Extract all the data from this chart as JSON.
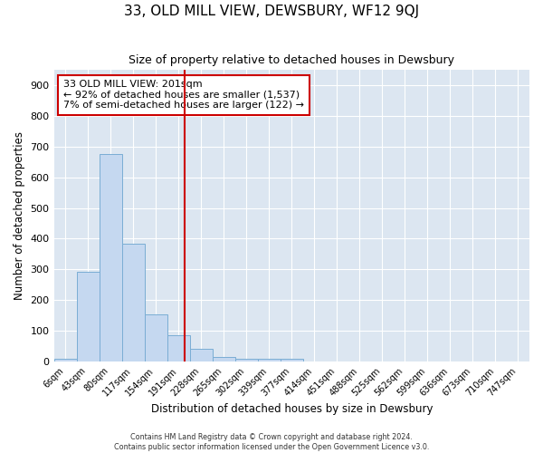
{
  "title": "33, OLD MILL VIEW, DEWSBURY, WF12 9QJ",
  "subtitle": "Size of property relative to detached houses in Dewsbury",
  "xlabel": "Distribution of detached houses by size in Dewsbury",
  "ylabel": "Number of detached properties",
  "bar_color": "#c5d8f0",
  "bar_edge_color": "#7aadd4",
  "bg_color": "#dce6f1",
  "grid_color": "#ffffff",
  "fig_bg_color": "#ffffff",
  "bin_labels": [
    "6sqm",
    "43sqm",
    "80sqm",
    "117sqm",
    "154sqm",
    "191sqm",
    "228sqm",
    "265sqm",
    "302sqm",
    "339sqm",
    "377sqm",
    "414sqm",
    "451sqm",
    "488sqm",
    "525sqm",
    "562sqm",
    "599sqm",
    "636sqm",
    "673sqm",
    "710sqm",
    "747sqm"
  ],
  "bar_heights": [
    10,
    293,
    675,
    385,
    155,
    85,
    42,
    15,
    10,
    8,
    10,
    0,
    0,
    0,
    0,
    0,
    0,
    0,
    0,
    0,
    0
  ],
  "ylim": [
    0,
    950
  ],
  "yticks": [
    0,
    100,
    200,
    300,
    400,
    500,
    600,
    700,
    800,
    900
  ],
  "vline_color": "#cc0000",
  "annotation_line1": "33 OLD MILL VIEW: 201sqm",
  "annotation_line2": "← 92% of detached houses are smaller (1,537)",
  "annotation_line3": "7% of semi-detached houses are larger (122) →",
  "annotation_box_color": "#cc0000",
  "footer_line1": "Contains HM Land Registry data © Crown copyright and database right 2024.",
  "footer_line2": "Contains public sector information licensed under the Open Government Licence v3.0."
}
